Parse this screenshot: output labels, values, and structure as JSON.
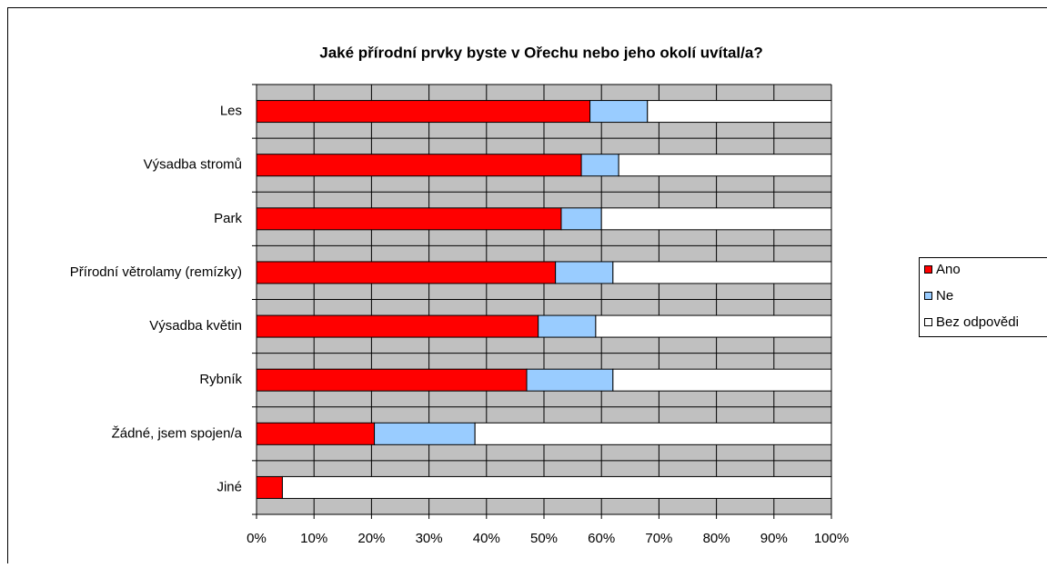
{
  "chart_data": {
    "type": "stacked-bar-horizontal",
    "title": "Jaké přírodní prvky byste v Ořechu nebo jeho okolí uvítal/a?",
    "categories": [
      "Les",
      "Výsadba stromů",
      "Park",
      "Přírodní větrolamy (remízky)",
      "Výsadba květin",
      "Rybník",
      "Žádné, jsem spojen/a",
      "Jiné"
    ],
    "series": [
      {
        "name": "Ano",
        "color": "#ff0000",
        "values": [
          58,
          56.5,
          53,
          52,
          49,
          47,
          20.5,
          4.5
        ]
      },
      {
        "name": "Ne",
        "color": "#99ccff",
        "values": [
          10,
          6.5,
          7,
          10,
          10,
          15,
          17.5,
          0
        ]
      },
      {
        "name": "Bez odpovědi",
        "color": "#ffffff",
        "values": [
          32,
          37,
          40,
          38,
          41,
          38,
          62,
          95.5
        ]
      }
    ],
    "xlim": [
      0,
      100
    ],
    "xticks": [
      {
        "value": 0,
        "label": "0%"
      },
      {
        "value": 10,
        "label": "10%"
      },
      {
        "value": 20,
        "label": "20%"
      },
      {
        "value": 30,
        "label": "30%"
      },
      {
        "value": 40,
        "label": "40%"
      },
      {
        "value": 50,
        "label": "50%"
      },
      {
        "value": 60,
        "label": "60%"
      },
      {
        "value": 70,
        "label": "70%"
      },
      {
        "value": 80,
        "label": "80%"
      },
      {
        "value": 90,
        "label": "90%"
      },
      {
        "value": 100,
        "label": "100%"
      }
    ],
    "grid": true,
    "legend": "right"
  }
}
